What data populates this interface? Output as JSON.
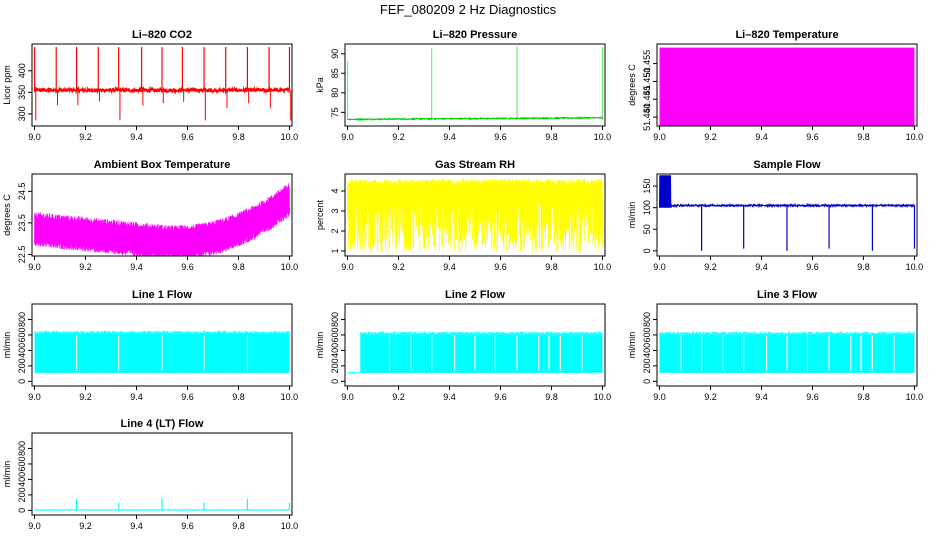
{
  "figure": {
    "title": "FEF_080209  2 Hz Diagnostics"
  },
  "chart_data": [
    {
      "type": "line",
      "title": "Li–820 CO2",
      "ylabel": "Licor ppm",
      "color": "#ff0000",
      "x_ticks": [
        "9.0",
        "9.2",
        "9.4",
        "9.6",
        "9.8",
        "10.0"
      ],
      "y_ticks": [
        {
          "v": 300,
          "t": "300"
        },
        {
          "v": 350,
          "t": "350"
        },
        {
          "v": 400,
          "t": "400"
        }
      ],
      "xlim": [
        8.99,
        10.01
      ],
      "ylim": [
        272,
        462
      ],
      "series": [
        {
          "pattern": "co2",
          "base": 355,
          "noise": 4,
          "spikes_up": 455,
          "spikes_down": 285,
          "xrange": [
            9.0,
            10.0
          ]
        }
      ]
    },
    {
      "type": "line",
      "title": "Li–820 Pressure",
      "ylabel": "kPa",
      "color": "#00cc00",
      "x_ticks": [
        "9.0",
        "9.2",
        "9.4",
        "9.6",
        "9.8",
        "10.0"
      ],
      "y_ticks": [
        {
          "v": 75,
          "t": "75"
        },
        {
          "v": 80,
          "t": "80"
        },
        {
          "v": 85,
          "t": "85"
        },
        {
          "v": 90,
          "t": "90"
        }
      ],
      "xlim": [
        8.99,
        10.01
      ],
      "ylim": [
        71.5,
        92.5
      ],
      "series": [
        {
          "pattern": "pressure",
          "base": 73.2,
          "spikes": [
            {
              "x": 9.0,
              "y": 88
            },
            {
              "x": 9.33,
              "y": 91.3
            },
            {
              "x": 9.665,
              "y": 91.8
            },
            {
              "x": 10.0,
              "y": 91.8
            }
          ],
          "xrange": [
            9.0,
            10.0
          ]
        }
      ]
    },
    {
      "type": "area",
      "title": "Li–820 Temperature",
      "ylabel": "degrees C",
      "color": "#ff00ff",
      "x_ticks": [
        "9.0",
        "9.2",
        "9.4",
        "9.6",
        "9.8",
        "10.0"
      ],
      "y_ticks": [
        {
          "v": 51.44,
          "t": "51.440"
        },
        {
          "v": 51.445,
          "t": "51.445"
        },
        {
          "v": 51.45,
          "t": "51.450"
        },
        {
          "v": 51.455,
          "t": "51.455"
        }
      ],
      "xlim": [
        8.99,
        10.01
      ],
      "ylim": [
        51.4375,
        51.4605
      ],
      "series": [
        {
          "pattern": "band",
          "low": 51.4375,
          "high": 51.4595,
          "xrange": [
            9.0,
            10.0
          ]
        }
      ]
    },
    {
      "type": "line",
      "title": "Ambient Box Temperature",
      "ylabel": "degrees C",
      "color": "#ff00ff",
      "x_ticks": [
        "9.0",
        "9.2",
        "9.4",
        "9.6",
        "9.8",
        "10.0"
      ],
      "y_ticks": [
        {
          "v": 22.5,
          "t": "22.5"
        },
        {
          "v": 23.5,
          "t": "23.5"
        },
        {
          "v": 24.5,
          "t": "24.5"
        }
      ],
      "xlim": [
        8.99,
        10.01
      ],
      "ylim": [
        22.45,
        25.05
      ],
      "series": [
        {
          "pattern": "ambient",
          "xrange": [
            9.0,
            10.0
          ]
        }
      ]
    },
    {
      "type": "line",
      "title": "Gas Stream RH",
      "ylabel": "percent",
      "color": "#ffff00",
      "x_ticks": [
        "9.0",
        "9.2",
        "9.4",
        "9.6",
        "9.8",
        "10.0"
      ],
      "y_ticks": [
        {
          "v": 1,
          "t": "1"
        },
        {
          "v": 2,
          "t": "2"
        },
        {
          "v": 3,
          "t": "3"
        },
        {
          "v": 4,
          "t": "4"
        }
      ],
      "xlim": [
        8.99,
        10.01
      ],
      "ylim": [
        0.75,
        4.85
      ],
      "series": [
        {
          "pattern": "rh",
          "low": 0.9,
          "high": 4.6,
          "xrange": [
            9.0,
            10.0
          ]
        }
      ]
    },
    {
      "type": "line",
      "title": "Sample Flow",
      "ylabel": "ml/min",
      "color": "#0000cc",
      "x_ticks": [
        "9.0",
        "9.2",
        "9.4",
        "9.6",
        "9.8",
        "10.0"
      ],
      "y_ticks": [
        {
          "v": 0,
          "t": "0"
        },
        {
          "v": 50,
          "t": "50"
        },
        {
          "v": 100,
          "t": "100"
        },
        {
          "v": 150,
          "t": "150"
        }
      ],
      "xlim": [
        8.99,
        10.01
      ],
      "ylim": [
        -12,
        178
      ],
      "series": [
        {
          "pattern": "sample",
          "base": 105,
          "dips": [
            9.165,
            9.33,
            9.5,
            9.665,
            9.835,
            10.0
          ],
          "xrange": [
            9.0,
            10.0
          ]
        }
      ]
    },
    {
      "type": "line",
      "title": "Line 1 Flow",
      "ylabel": "ml/min",
      "color": "#00ffff",
      "x_ticks": [
        "9.0",
        "9.2",
        "9.4",
        "9.6",
        "9.8",
        "10.0"
      ],
      "y_ticks": [
        {
          "v": 0,
          "t": "0"
        },
        {
          "v": 200,
          "t": "200"
        },
        {
          "v": 400,
          "t": "400"
        },
        {
          "v": 600,
          "t": "600"
        },
        {
          "v": 800,
          "t": "800"
        }
      ],
      "xlim": [
        8.99,
        10.01
      ],
      "ylim": [
        -60,
        1000
      ],
      "series": [
        {
          "pattern": "flow",
          "low": 110,
          "high": 620,
          "start": 9.0,
          "gaps": [
            9.165,
            9.33,
            9.5,
            9.665,
            9.835
          ],
          "xrange": [
            9.0,
            10.0
          ]
        }
      ]
    },
    {
      "type": "line",
      "title": "Line 2 Flow",
      "ylabel": "ml/min",
      "color": "#00ffff",
      "x_ticks": [
        "9.0",
        "9.2",
        "9.4",
        "9.6",
        "9.8",
        "10.0"
      ],
      "y_ticks": [
        {
          "v": 0,
          "t": "0"
        },
        {
          "v": 200,
          "t": "200"
        },
        {
          "v": 400,
          "t": "400"
        },
        {
          "v": 600,
          "t": "600"
        },
        {
          "v": 800,
          "t": "800"
        }
      ],
      "xlim": [
        8.99,
        10.01
      ],
      "ylim": [
        -60,
        1000
      ],
      "series": [
        {
          "pattern": "flow",
          "low": 110,
          "high": 610,
          "start": 9.05,
          "pre": 110,
          "gaps": [
            9.165,
            9.25,
            9.33,
            9.42,
            9.5,
            9.58,
            9.665,
            9.75,
            9.79,
            9.835,
            9.92
          ],
          "xrange": [
            9.0,
            10.0
          ]
        }
      ]
    },
    {
      "type": "line",
      "title": "Line 3 Flow",
      "ylabel": "ml/min",
      "color": "#00ffff",
      "x_ticks": [
        "9.0",
        "9.2",
        "9.4",
        "9.6",
        "9.8",
        "10.0"
      ],
      "y_ticks": [
        {
          "v": 0,
          "t": "0"
        },
        {
          "v": 200,
          "t": "200"
        },
        {
          "v": 400,
          "t": "400"
        },
        {
          "v": 600,
          "t": "600"
        },
        {
          "v": 800,
          "t": "800"
        }
      ],
      "xlim": [
        8.99,
        10.01
      ],
      "ylim": [
        -60,
        1000
      ],
      "series": [
        {
          "pattern": "flow",
          "low": 110,
          "high": 610,
          "start": 9.0,
          "gaps": [
            9.085,
            9.165,
            9.25,
            9.33,
            9.42,
            9.5,
            9.58,
            9.665,
            9.75,
            9.79,
            9.835,
            9.92
          ],
          "xrange": [
            9.0,
            10.0
          ]
        }
      ]
    },
    {
      "type": "line",
      "title": "Line 4 (LT) Flow",
      "ylabel": "ml/min",
      "color": "#00ffff",
      "x_ticks": [
        "9.0",
        "9.2",
        "9.4",
        "9.6",
        "9.8",
        "10.0"
      ],
      "y_ticks": [
        {
          "v": 0,
          "t": "0"
        },
        {
          "v": 200,
          "t": "200"
        },
        {
          "v": 400,
          "t": "400"
        },
        {
          "v": 600,
          "t": "600"
        },
        {
          "v": 800,
          "t": "800"
        }
      ],
      "xlim": [
        8.99,
        10.01
      ],
      "ylim": [
        -60,
        1000
      ],
      "series": [
        {
          "pattern": "lt",
          "base": 5,
          "spikes": [
            {
              "x": 9.165,
              "y": 150
            },
            {
              "x": 9.33,
              "y": 100
            },
            {
              "x": 9.5,
              "y": 150
            },
            {
              "x": 9.665,
              "y": 100
            },
            {
              "x": 9.835,
              "y": 150
            },
            {
              "x": 10.0,
              "y": 100
            }
          ],
          "xrange": [
            9.0,
            10.0
          ]
        }
      ]
    }
  ]
}
